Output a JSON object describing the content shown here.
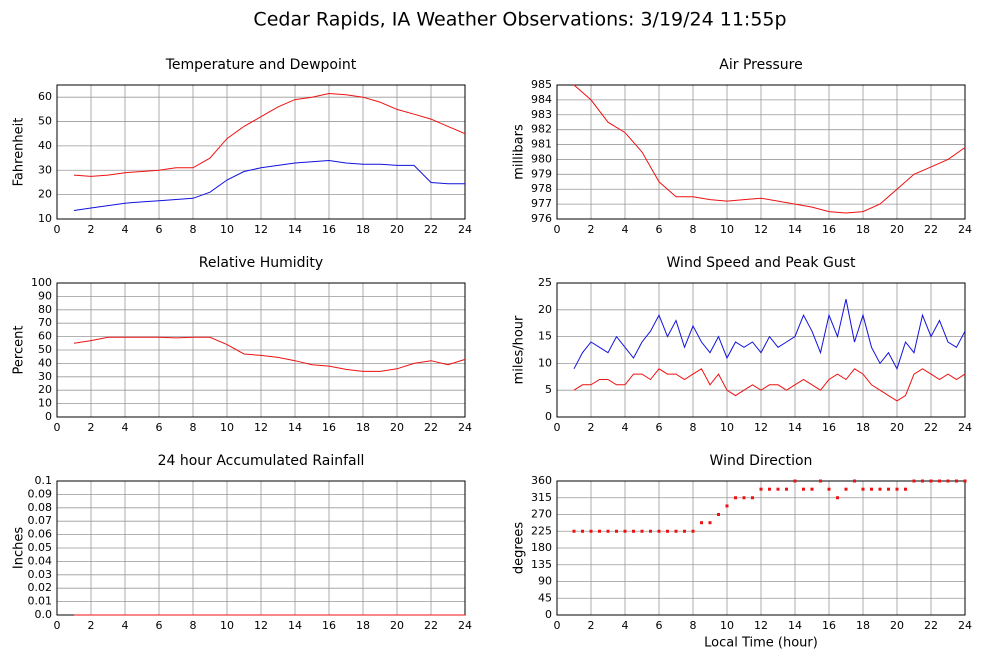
{
  "title": "Cedar Rapids, IA Weather Observations: 3/19/24 11:55p",
  "chart_data": [
    {
      "type": "line",
      "title": "Temperature and Dewpoint",
      "ylabel": "Fahrenheit",
      "x": [
        1,
        2,
        3,
        4,
        5,
        6,
        7,
        8,
        9,
        10,
        11,
        12,
        13,
        14,
        15,
        16,
        17,
        18,
        19,
        20,
        21,
        22,
        23,
        24
      ],
      "series": [
        {
          "color": "#ee1111",
          "values": [
            28,
            27.5,
            28,
            29,
            29.5,
            30,
            31,
            31,
            35,
            43,
            48,
            52,
            56,
            59,
            60,
            61.5,
            61,
            60,
            58,
            55,
            53,
            51,
            48,
            45
          ]
        },
        {
          "color": "#1111dd",
          "values": [
            13.5,
            14.5,
            15.5,
            16.5,
            17,
            17.5,
            18,
            18.5,
            21,
            26,
            29.5,
            31,
            32,
            33,
            33.5,
            34,
            33,
            32.5,
            32.5,
            32,
            32,
            25,
            24.5,
            24.5
          ]
        }
      ],
      "xlim": [
        0,
        24
      ],
      "xticks": [
        0,
        2,
        4,
        6,
        8,
        10,
        12,
        14,
        16,
        18,
        20,
        22,
        24
      ],
      "ylim": [
        10,
        65
      ],
      "yticks": [
        10,
        20,
        30,
        40,
        50,
        60
      ],
      "grid": true
    },
    {
      "type": "line",
      "title": "Air Pressure",
      "ylabel": "millibars",
      "x": [
        1,
        2,
        3,
        4,
        5,
        6,
        7,
        8,
        9,
        10,
        11,
        12,
        13,
        14,
        15,
        16,
        17,
        18,
        19,
        20,
        21,
        22,
        23,
        24
      ],
      "series": [
        {
          "color": "#ee1111",
          "values": [
            985,
            984,
            982.5,
            981.8,
            980.5,
            978.5,
            977.5,
            977.5,
            977.3,
            977.2,
            977.3,
            977.4,
            977.2,
            977,
            976.8,
            976.5,
            976.4,
            976.5,
            977,
            978,
            979,
            979.5,
            980,
            980.8
          ]
        }
      ],
      "xlim": [
        0,
        24
      ],
      "xticks": [
        0,
        2,
        4,
        6,
        8,
        10,
        12,
        14,
        16,
        18,
        20,
        22,
        24
      ],
      "ylim": [
        976,
        985
      ],
      "yticks": [
        976,
        977,
        978,
        979,
        980,
        981,
        982,
        983,
        984,
        985
      ],
      "grid": true
    },
    {
      "type": "line",
      "title": "Relative Humidity",
      "ylabel": "Percent",
      "x": [
        1,
        2,
        3,
        4,
        5,
        6,
        7,
        8,
        9,
        10,
        11,
        12,
        13,
        14,
        15,
        16,
        17,
        18,
        19,
        20,
        21,
        22,
        23,
        24
      ],
      "series": [
        {
          "color": "#ee1111",
          "values": [
            55,
            57,
            59.5,
            59.5,
            59.5,
            59.5,
            59,
            59.5,
            59.5,
            54,
            47,
            46,
            44.5,
            42,
            39,
            38,
            35.5,
            34,
            34,
            36,
            40,
            42,
            39,
            43
          ]
        }
      ],
      "xlim": [
        0,
        24
      ],
      "xticks": [
        0,
        2,
        4,
        6,
        8,
        10,
        12,
        14,
        16,
        18,
        20,
        22,
        24
      ],
      "ylim": [
        0,
        100
      ],
      "yticks": [
        0,
        10,
        20,
        30,
        40,
        50,
        60,
        70,
        80,
        90,
        100
      ],
      "grid": true
    },
    {
      "type": "line",
      "title": "Wind Speed and Peak Gust",
      "ylabel": "miles/hour",
      "x": [
        1,
        1.5,
        2,
        2.5,
        3,
        3.5,
        4,
        4.5,
        5,
        5.5,
        6,
        6.5,
        7,
        7.5,
        8,
        8.5,
        9,
        9.5,
        10,
        10.5,
        11,
        11.5,
        12,
        12.5,
        13,
        13.5,
        14,
        14.5,
        15,
        15.5,
        16,
        16.5,
        17,
        17.5,
        18,
        18.5,
        19,
        19.5,
        20,
        20.5,
        21,
        21.5,
        22,
        22.5,
        23,
        23.5,
        24
      ],
      "series": [
        {
          "color": "#1111dd",
          "values": [
            9,
            12,
            14,
            13,
            12,
            15,
            13,
            11,
            14,
            16,
            19,
            15,
            18,
            13,
            17,
            14,
            12,
            15,
            11,
            14,
            13,
            14,
            12,
            15,
            13,
            14,
            15,
            19,
            16,
            12,
            19,
            15,
            22,
            14,
            19,
            13,
            10,
            12,
            9,
            14,
            12,
            19,
            15,
            18,
            14,
            13,
            16
          ]
        },
        {
          "color": "#ee1111",
          "values": [
            5,
            6,
            6,
            7,
            7,
            6,
            6,
            8,
            8,
            7,
            9,
            8,
            8,
            7,
            8,
            9,
            6,
            8,
            5,
            4,
            5,
            6,
            5,
            6,
            6,
            5,
            6,
            7,
            6,
            5,
            7,
            8,
            7,
            9,
            8,
            6,
            5,
            4,
            3,
            4,
            8,
            9,
            8,
            7,
            8,
            7,
            8
          ]
        }
      ],
      "xlim": [
        0,
        24
      ],
      "xticks": [
        0,
        2,
        4,
        6,
        8,
        10,
        12,
        14,
        16,
        18,
        20,
        22,
        24
      ],
      "ylim": [
        0,
        25
      ],
      "yticks": [
        0,
        5,
        10,
        15,
        20,
        25
      ],
      "grid": true
    },
    {
      "type": "line",
      "title": "24 hour Accumulated Rainfall",
      "ylabel": "Inches",
      "x": [
        1,
        2,
        3,
        4,
        5,
        6,
        7,
        8,
        9,
        10,
        11,
        12,
        13,
        14,
        15,
        16,
        17,
        18,
        19,
        20,
        21,
        22,
        23,
        24
      ],
      "series": [
        {
          "color": "#ee1111",
          "values": [
            0,
            0,
            0,
            0,
            0,
            0,
            0,
            0,
            0,
            0,
            0,
            0,
            0,
            0,
            0,
            0,
            0,
            0,
            0,
            0,
            0,
            0,
            0,
            0
          ]
        }
      ],
      "xlim": [
        0,
        24
      ],
      "xticks": [
        0,
        2,
        4,
        6,
        8,
        10,
        12,
        14,
        16,
        18,
        20,
        22,
        24
      ],
      "ylim": [
        0,
        0.1
      ],
      "yticks": [
        {
          "value": 0,
          "label": "0.0"
        },
        0.01,
        0.02,
        0.03,
        0.04,
        0.05,
        0.06,
        0.07,
        0.08,
        0.09,
        0.1
      ],
      "grid": true
    },
    {
      "type": "scatter",
      "title": "Wind Direction",
      "ylabel": "degrees",
      "xlabel": "Local Time (hour)",
      "x": [
        1,
        1.5,
        2,
        2.5,
        3,
        3.5,
        4,
        4.5,
        5,
        5.5,
        6,
        6.5,
        7,
        7.5,
        8,
        8.5,
        9,
        9.5,
        10,
        10.5,
        11,
        11.5,
        12,
        12.5,
        13,
        13.5,
        14,
        14.5,
        15,
        15.5,
        16,
        16.5,
        17,
        17.5,
        18,
        18.5,
        19,
        19.5,
        20,
        20.5,
        21,
        21.5,
        22,
        22.5,
        23,
        23.5,
        24
      ],
      "series": [
        {
          "color": "#ee1111",
          "values": [
            225,
            225,
            225,
            225,
            225,
            225,
            225,
            225,
            225,
            225,
            225,
            225,
            225,
            225,
            225,
            248,
            248,
            270,
            293,
            315,
            315,
            315,
            338,
            338,
            338,
            338,
            360,
            338,
            338,
            360,
            338,
            315,
            338,
            360,
            338,
            338,
            338,
            338,
            338,
            338,
            360,
            360,
            360,
            360,
            360,
            360,
            360
          ]
        }
      ],
      "xlim": [
        0,
        24
      ],
      "xticks": [
        0,
        2,
        4,
        6,
        8,
        10,
        12,
        14,
        16,
        18,
        20,
        22,
        24
      ],
      "ylim": [
        0,
        360
      ],
      "yticks": [
        0,
        45,
        90,
        135,
        180,
        225,
        270,
        315,
        360
      ],
      "grid": true
    }
  ]
}
